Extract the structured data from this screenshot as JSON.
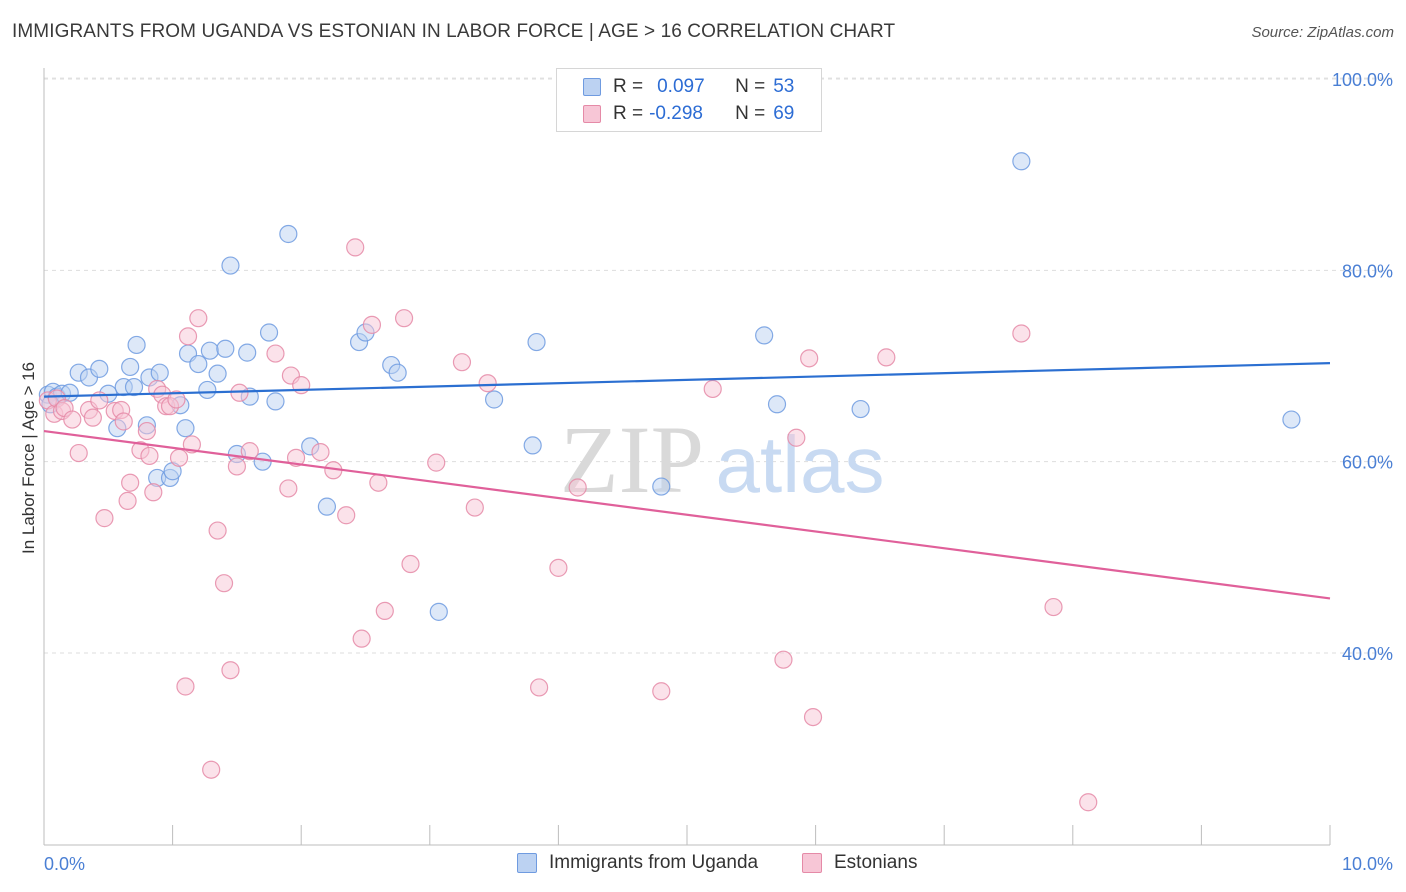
{
  "title": "IMMIGRANTS FROM UGANDA VS ESTONIAN IN LABOR FORCE | AGE > 16 CORRELATION CHART",
  "source": "Source: ZipAtlas.com",
  "watermark": {
    "zip": "ZIP",
    "atlas": "atlas"
  },
  "legend": {
    "rows": [
      {
        "r_label": "R =",
        "r_value": "0.097",
        "n_label": "N =",
        "n_value": "53",
        "color": "#6f9be0"
      },
      {
        "r_label": "R =",
        "r_value": "-0.298",
        "n_label": "N =",
        "n_value": "69",
        "color": "#e58aa7"
      }
    ]
  },
  "bottom_legend": [
    {
      "label": "Immigrants from Uganda",
      "color": "#6f9be0"
    },
    {
      "label": "Estonians",
      "color": "#e58aa7"
    }
  ],
  "chart_data": {
    "type": "scatter",
    "xlabel": "",
    "ylabel": "In Labor Force | Age > 16",
    "xlim": [
      0,
      10
    ],
    "ylim": [
      20,
      104
    ],
    "x_tick_labels": [
      "0.0%",
      "10.0%"
    ],
    "y_tick_labels": [
      "100.0%",
      "80.0%",
      "60.0%",
      "40.0%"
    ],
    "y_tick_values": [
      100,
      80,
      60,
      40
    ],
    "grid": true,
    "legend_position": "top-center",
    "series": [
      {
        "name": "Immigrants from Uganda",
        "color": "#6f9be0",
        "fill": "#bcd2f2",
        "trend": {
          "x": [
            0,
            10
          ],
          "y": [
            66.8,
            70.3
          ]
        },
        "points": [
          [
            0.03,
            67.0
          ],
          [
            0.07,
            67.3
          ],
          [
            0.1,
            66.8
          ],
          [
            0.14,
            67.1
          ],
          [
            0.05,
            66.0
          ],
          [
            0.2,
            67.2
          ],
          [
            0.27,
            69.3
          ],
          [
            0.35,
            68.8
          ],
          [
            0.43,
            69.7
          ],
          [
            0.5,
            67.1
          ],
          [
            0.57,
            63.5
          ],
          [
            0.62,
            67.8
          ],
          [
            0.7,
            67.8
          ],
          [
            0.67,
            69.9
          ],
          [
            0.72,
            72.2
          ],
          [
            0.82,
            68.8
          ],
          [
            0.8,
            63.8
          ],
          [
            0.9,
            69.3
          ],
          [
            0.88,
            58.3
          ],
          [
            0.98,
            58.3
          ],
          [
            1.0,
            59.0
          ],
          [
            1.06,
            65.9
          ],
          [
            1.1,
            63.5
          ],
          [
            1.12,
            71.3
          ],
          [
            1.2,
            70.2
          ],
          [
            1.27,
            67.5
          ],
          [
            1.29,
            71.6
          ],
          [
            1.35,
            69.2
          ],
          [
            1.41,
            71.8
          ],
          [
            1.45,
            80.5
          ],
          [
            1.5,
            60.8
          ],
          [
            1.58,
            71.4
          ],
          [
            1.6,
            66.8
          ],
          [
            1.7,
            60.0
          ],
          [
            1.75,
            73.5
          ],
          [
            1.8,
            66.3
          ],
          [
            1.9,
            83.8
          ],
          [
            2.07,
            61.6
          ],
          [
            2.2,
            55.3
          ],
          [
            2.45,
            72.5
          ],
          [
            2.5,
            73.5
          ],
          [
            2.7,
            70.1
          ],
          [
            2.75,
            69.3
          ],
          [
            3.07,
            44.3
          ],
          [
            3.5,
            66.5
          ],
          [
            3.8,
            61.7
          ],
          [
            3.83,
            72.5
          ],
          [
            4.8,
            57.4
          ],
          [
            5.6,
            73.2
          ],
          [
            5.7,
            66.0
          ],
          [
            6.35,
            65.5
          ],
          [
            7.6,
            91.4
          ],
          [
            9.7,
            64.4
          ]
        ]
      },
      {
        "name": "Estonians",
        "color": "#e58aa7",
        "fill": "#f7c6d6",
        "trend": {
          "x": [
            0,
            10
          ],
          "y": [
            63.2,
            45.7
          ]
        },
        "points": [
          [
            0.03,
            66.4
          ],
          [
            0.08,
            65.0
          ],
          [
            0.1,
            66.6
          ],
          [
            0.14,
            65.3
          ],
          [
            0.16,
            65.6
          ],
          [
            0.22,
            64.4
          ],
          [
            0.27,
            60.9
          ],
          [
            0.35,
            65.4
          ],
          [
            0.38,
            64.6
          ],
          [
            0.43,
            66.4
          ],
          [
            0.47,
            54.1
          ],
          [
            0.55,
            65.3
          ],
          [
            0.6,
            65.4
          ],
          [
            0.62,
            64.2
          ],
          [
            0.65,
            55.9
          ],
          [
            0.67,
            57.8
          ],
          [
            0.75,
            61.2
          ],
          [
            0.8,
            63.2
          ],
          [
            0.82,
            60.6
          ],
          [
            0.85,
            56.8
          ],
          [
            0.88,
            67.6
          ],
          [
            0.92,
            67.0
          ],
          [
            0.95,
            65.8
          ],
          [
            0.98,
            65.8
          ],
          [
            1.03,
            66.5
          ],
          [
            1.05,
            60.4
          ],
          [
            1.1,
            36.5
          ],
          [
            1.12,
            73.1
          ],
          [
            1.15,
            61.8
          ],
          [
            1.2,
            75.0
          ],
          [
            1.3,
            27.8
          ],
          [
            1.35,
            52.8
          ],
          [
            1.4,
            47.3
          ],
          [
            1.45,
            38.2
          ],
          [
            1.5,
            59.5
          ],
          [
            1.52,
            67.2
          ],
          [
            1.6,
            61.1
          ],
          [
            1.8,
            71.3
          ],
          [
            1.9,
            57.2
          ],
          [
            1.92,
            69.0
          ],
          [
            1.96,
            60.4
          ],
          [
            2.0,
            68.0
          ],
          [
            2.15,
            61.0
          ],
          [
            2.25,
            59.1
          ],
          [
            2.35,
            54.4
          ],
          [
            2.42,
            82.4
          ],
          [
            2.47,
            41.5
          ],
          [
            2.55,
            74.3
          ],
          [
            2.6,
            57.8
          ],
          [
            2.65,
            44.4
          ],
          [
            2.8,
            75.0
          ],
          [
            2.85,
            49.3
          ],
          [
            3.05,
            59.9
          ],
          [
            3.25,
            70.4
          ],
          [
            3.35,
            55.2
          ],
          [
            3.45,
            68.2
          ],
          [
            3.85,
            36.4
          ],
          [
            4.0,
            48.9
          ],
          [
            4.15,
            57.3
          ],
          [
            4.8,
            36.0
          ],
          [
            5.2,
            67.6
          ],
          [
            5.75,
            39.3
          ],
          [
            5.85,
            62.5
          ],
          [
            5.95,
            70.8
          ],
          [
            5.98,
            33.3
          ],
          [
            6.55,
            70.9
          ],
          [
            7.6,
            73.4
          ],
          [
            7.85,
            44.8
          ],
          [
            8.12,
            24.4
          ]
        ]
      }
    ]
  }
}
